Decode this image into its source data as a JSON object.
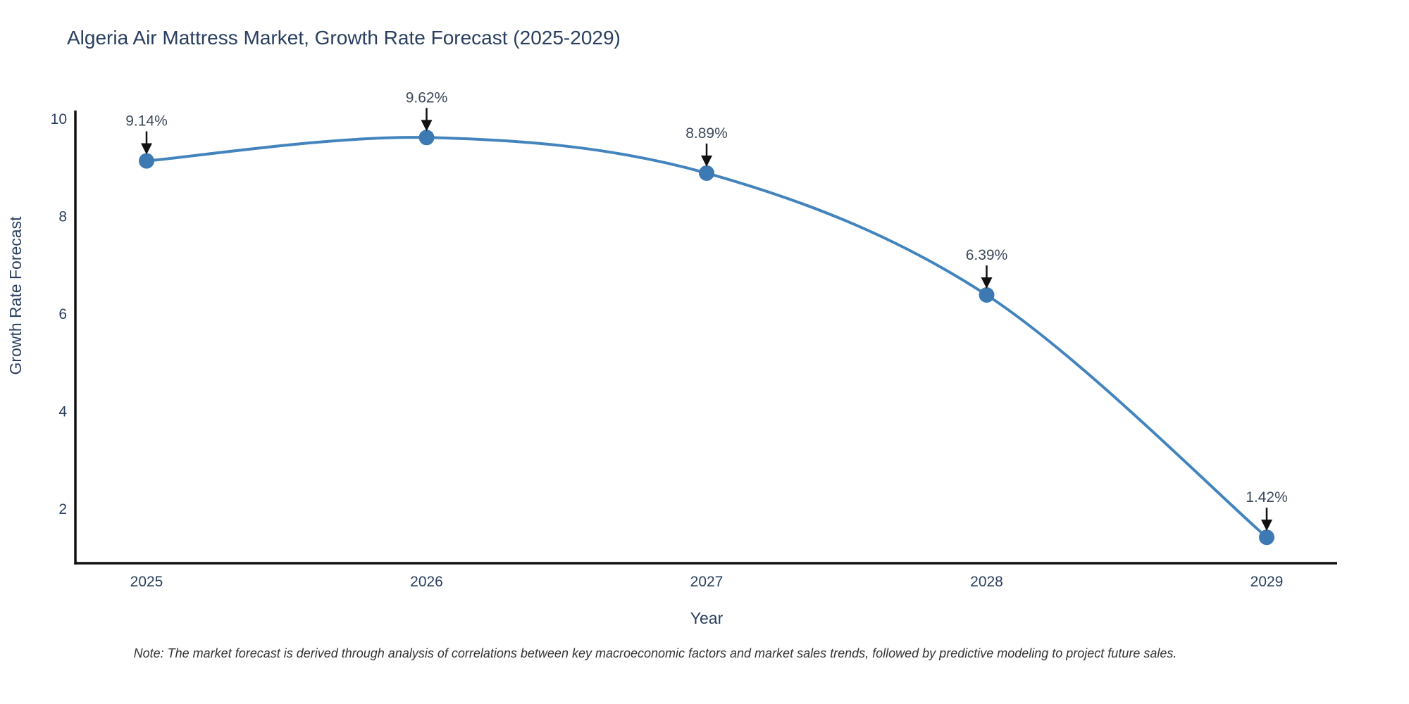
{
  "chart_data": {
    "type": "line",
    "title": "Algeria Air Mattress Market, Growth Rate Forecast (2025-2029)",
    "xlabel": "Year",
    "ylabel": "Growth Rate Forecast",
    "categories": [
      2025,
      2026,
      2027,
      2028,
      2029
    ],
    "values": [
      9.14,
      9.62,
      8.89,
      6.39,
      1.42
    ],
    "point_labels": [
      "9.14%",
      "9.62%",
      "8.89%",
      "6.39%",
      "1.42%"
    ],
    "yticks": [
      2,
      4,
      6,
      8,
      10
    ],
    "ylim": [
      0.86,
      10.17
    ],
    "grid": false,
    "legend": "none",
    "line_shape": "spline",
    "colors": {
      "line": "#4384bd",
      "marker": "#3d79b2",
      "axis": "#111111",
      "title_text": "#2a3f5f",
      "tick_text": "#2a3f5f",
      "annotation_text": "#3d4a5c",
      "arrow": "#111111"
    }
  },
  "note": "Note: The market forecast is derived through analysis of correlations between key macroeconomic factors and market sales trends, followed by predictive modeling to project future sales."
}
